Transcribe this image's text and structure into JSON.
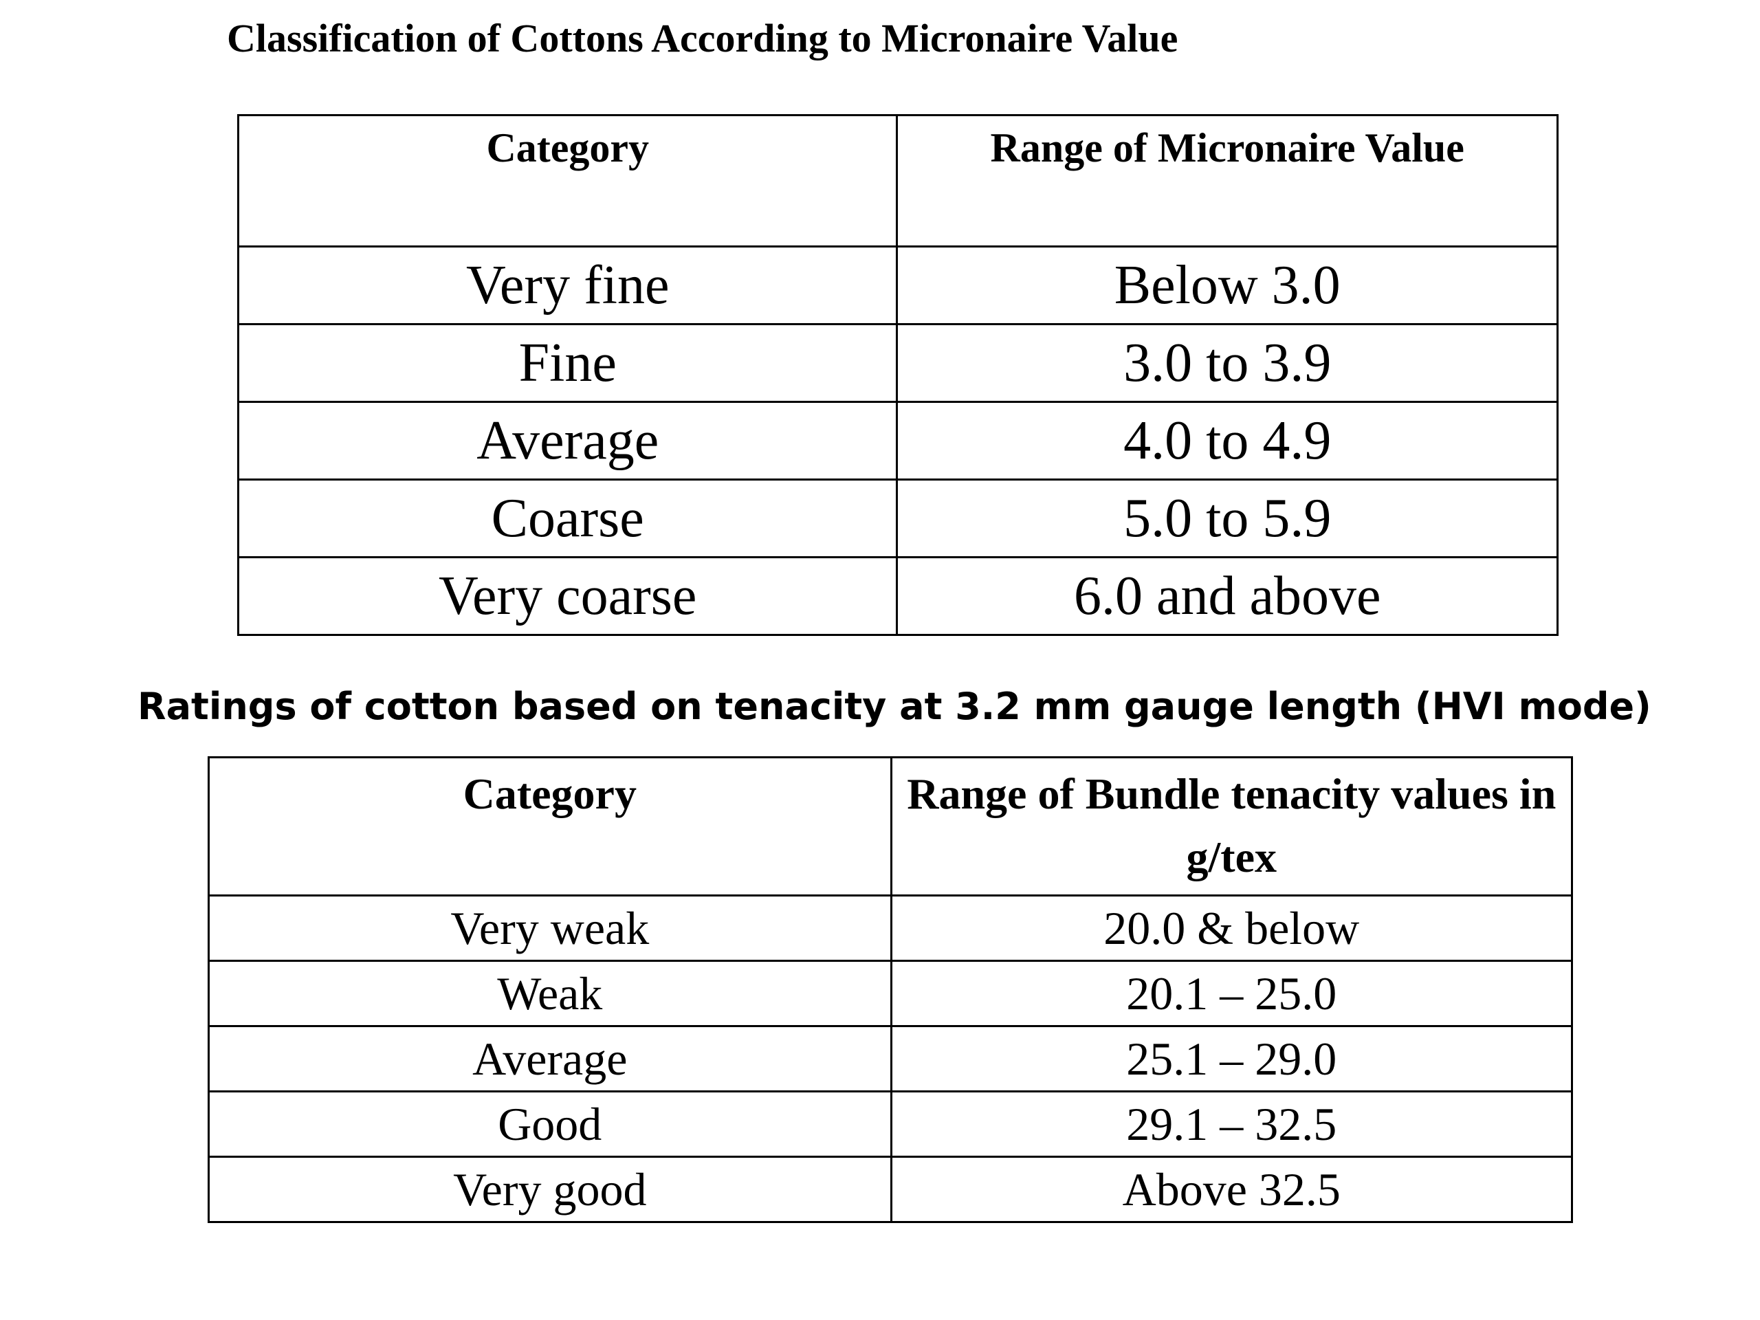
{
  "micronaire_table": {
    "title": "Classification of Cottons According to Micronaire Value",
    "headers": [
      "Category",
      "Range of Micronaire Value"
    ],
    "rows": [
      [
        "Very fine",
        "Below 3.0"
      ],
      [
        "Fine",
        "3.0 to 3.9"
      ],
      [
        "Average",
        "4.0 to 4.9"
      ],
      [
        "Coarse",
        "5.0 to 5.9"
      ],
      [
        "Very coarse",
        "6.0 and above"
      ]
    ]
  },
  "tenacity_table": {
    "title": "Ratings of cotton based on tenacity at 3.2 mm gauge length (HVI mode)",
    "headers": [
      "Category",
      "Range of Bundle tenacity values in g/tex"
    ],
    "rows": [
      [
        "Very weak",
        "20.0 & below"
      ],
      [
        "Weak",
        "20.1 – 25.0"
      ],
      [
        "Average",
        "25.1 – 29.0"
      ],
      [
        "Good",
        "29.1 – 32.5"
      ],
      [
        "Very good",
        "Above 32.5"
      ]
    ]
  }
}
